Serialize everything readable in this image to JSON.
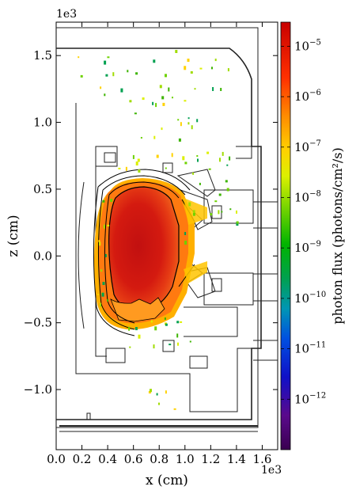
{
  "chart_data": {
    "type": "heatmap",
    "title": "",
    "xlabel": "x (cm)",
    "ylabel": "z (cm)",
    "x_offset_label": "1e3",
    "y_offset_label": "1e3",
    "xlim": [
      0.0,
      1.72
    ],
    "ylim": [
      -1.45,
      1.75
    ],
    "x_ticks": [
      0.0,
      0.2,
      0.4,
      0.6,
      0.8,
      1.0,
      1.2,
      1.4,
      1.6
    ],
    "x_tick_labels": [
      "0.0",
      "0.2",
      "0.4",
      "0.6",
      "0.8",
      "1.0",
      "1.2",
      "1.4",
      "1.6"
    ],
    "y_ticks": [
      -1.0,
      -0.5,
      0.0,
      0.5,
      1.0,
      1.5
    ],
    "y_tick_labels": [
      "−1.0",
      "−0.5",
      "0.0",
      "0.5",
      "1.0",
      "1.5"
    ],
    "colorbar": {
      "label": "photon flux (photons/cm²/s)",
      "scale": "log",
      "range": [
        1e-13,
        3e-05
      ],
      "ticks": [
        {
          "value": 1e-12,
          "base": "10",
          "exp": "−12"
        },
        {
          "value": 1e-11,
          "base": "10",
          "exp": "−11"
        },
        {
          "value": 1e-10,
          "base": "10",
          "exp": "−10"
        },
        {
          "value": 1e-09,
          "base": "10",
          "exp": "−9"
        },
        {
          "value": 1e-08,
          "base": "10",
          "exp": "−8"
        },
        {
          "value": 1e-07,
          "base": "10",
          "exp": "−7"
        },
        {
          "value": 1e-06,
          "base": "10",
          "exp": "−6"
        },
        {
          "value": 1e-05,
          "base": "10",
          "exp": "−5"
        }
      ],
      "colormap": "nipy_spectral-like (purple → blue → green → yellow → orange → red)"
    },
    "plasma_region": {
      "center_x": 0.62,
      "center_z": 0.03,
      "peak_flux": 2e-05,
      "edge_flux": 1e-07
    },
    "grid": false
  }
}
